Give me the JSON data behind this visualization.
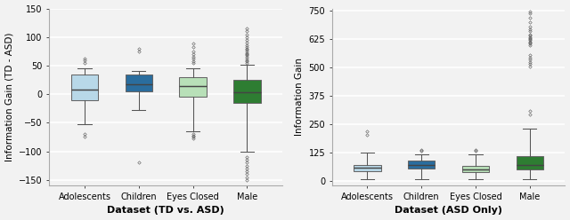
{
  "left_plot": {
    "xlabel": "Dataset (TD vs. ASD)",
    "ylabel": "Information Gain (TD - ASD)",
    "ylim": [
      -160,
      150
    ],
    "yticks": [
      -150,
      -100,
      -50,
      0,
      50,
      100,
      150
    ],
    "categories": [
      "Adolescents",
      "Children",
      "Eyes Closed",
      "Male"
    ],
    "colors": [
      "#b8d8e8",
      "#2a6d9e",
      "#b8e0b8",
      "#2e7d32"
    ],
    "box_stats": [
      {
        "med": 8,
        "q1": -10,
        "q3": 35,
        "whislo": -52,
        "whishi": 45,
        "fliers": [
          -70,
          -75,
          55,
          60,
          62
        ]
      },
      {
        "med": 18,
        "q1": 5,
        "q3": 35,
        "whislo": -28,
        "whishi": 40,
        "fliers": [
          -120,
          75,
          80
        ]
      },
      {
        "med": 15,
        "q1": -5,
        "q3": 30,
        "whislo": -65,
        "whishi": 45,
        "fliers": [
          -70,
          -72,
          -75,
          -78,
          55,
          58,
          62,
          65,
          70,
          75,
          82,
          88
        ]
      },
      {
        "med": 3,
        "q1": -15,
        "q3": 25,
        "whislo": -100,
        "whishi": 52,
        "fliers": [
          -110,
          -115,
          -120,
          -125,
          -130,
          -135,
          -140,
          -145,
          -150,
          55,
          58,
          60,
          62,
          65,
          68,
          70,
          72,
          75,
          78,
          80,
          83,
          86,
          90,
          95,
          100,
          105,
          110,
          115
        ]
      }
    ]
  },
  "right_plot": {
    "xlabel": "Dataset (ASD Only)",
    "ylabel": "Information Gain",
    "ylim": [
      -20,
      760
    ],
    "yticks": [
      0,
      125,
      250,
      375,
      500,
      625,
      750
    ],
    "categories": [
      "Adolescents",
      "Children",
      "Eyes Closed",
      "Male"
    ],
    "colors": [
      "#b8d8e8",
      "#2a6d9e",
      "#b8e0b8",
      "#2e7d32"
    ],
    "box_stats": [
      {
        "med": 58,
        "q1": 42,
        "q3": 72,
        "whislo": 8,
        "whishi": 125,
        "fliers": [
          205,
          220
        ]
      },
      {
        "med": 72,
        "q1": 55,
        "q3": 92,
        "whislo": 8,
        "whishi": 118,
        "fliers": [
          132,
          138
        ]
      },
      {
        "med": 52,
        "q1": 38,
        "q3": 68,
        "whislo": 8,
        "whishi": 118,
        "fliers": [
          132,
          138
        ]
      },
      {
        "med": 72,
        "q1": 52,
        "q3": 108,
        "whislo": 8,
        "whishi": 232,
        "fliers": [
          295,
          310,
          505,
          515,
          525,
          535,
          545,
          555,
          600,
          605,
          610,
          615,
          620,
          625,
          630,
          635,
          640,
          645,
          660,
          670,
          680,
          700,
          720,
          740,
          748
        ]
      }
    ]
  },
  "bg_color": "#f2f2f2",
  "grid_color": "#ffffff",
  "label_fontsize": 8,
  "tick_fontsize": 7,
  "box_width": 0.5,
  "flier_size": 1.8,
  "linewidth": 0.75
}
